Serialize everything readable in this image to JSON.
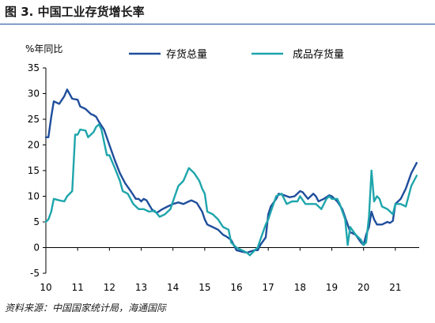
{
  "figure": {
    "title": "图 3. 中国工业存货增长率",
    "source": "资料来源：中国国家统计局，海通国际"
  },
  "chart_data": {
    "type": "line",
    "title": "",
    "ylabel": "%年同比",
    "xlabel": "",
    "xlim": [
      2010,
      2021.75
    ],
    "ylim": [
      -5,
      35
    ],
    "yticks": [
      -5,
      0,
      5,
      10,
      15,
      20,
      25,
      30,
      35
    ],
    "xticks": [
      {
        "value": 2010,
        "label": "10"
      },
      {
        "value": 2011,
        "label": "11"
      },
      {
        "value": 2012,
        "label": "12"
      },
      {
        "value": 2013,
        "label": "13"
      },
      {
        "value": 2014,
        "label": "14"
      },
      {
        "value": 2015,
        "label": "15"
      },
      {
        "value": 2016,
        "label": "16"
      },
      {
        "value": 2017,
        "label": "17"
      },
      {
        "value": 2018,
        "label": "18"
      },
      {
        "value": 2019,
        "label": "19"
      },
      {
        "value": 2020,
        "label": "20"
      },
      {
        "value": 2021,
        "label": "21"
      }
    ],
    "grid": false,
    "legend_position": "top",
    "series": [
      {
        "name": "存货总量",
        "color": "#1f4e9c",
        "points": [
          [
            2010.0,
            21.5
          ],
          [
            2010.08,
            21.5
          ],
          [
            2010.17,
            25.5
          ],
          [
            2010.25,
            28.5
          ],
          [
            2010.42,
            28.0
          ],
          [
            2010.58,
            29.5
          ],
          [
            2010.67,
            30.8
          ],
          [
            2010.83,
            29.0
          ],
          [
            2011.0,
            28.8
          ],
          [
            2011.08,
            27.5
          ],
          [
            2011.25,
            27.0
          ],
          [
            2011.42,
            26.0
          ],
          [
            2011.5,
            25.8
          ],
          [
            2011.58,
            25.5
          ],
          [
            2011.67,
            24.5
          ],
          [
            2011.83,
            23.0
          ],
          [
            2012.0,
            20.0
          ],
          [
            2012.17,
            17.0
          ],
          [
            2012.33,
            14.5
          ],
          [
            2012.5,
            12.5
          ],
          [
            2012.67,
            11.0
          ],
          [
            2012.83,
            9.5
          ],
          [
            2012.92,
            9.5
          ],
          [
            2013.0,
            9.0
          ],
          [
            2013.08,
            9.5
          ],
          [
            2013.17,
            9.2
          ],
          [
            2013.33,
            7.5
          ],
          [
            2013.42,
            7.0
          ],
          [
            2013.5,
            6.8
          ],
          [
            2013.67,
            7.5
          ],
          [
            2013.83,
            8.0
          ],
          [
            2014.0,
            8.5
          ],
          [
            2014.17,
            8.8
          ],
          [
            2014.33,
            8.5
          ],
          [
            2014.5,
            9.0
          ],
          [
            2014.58,
            9.2
          ],
          [
            2014.75,
            8.7
          ],
          [
            2014.92,
            7.0
          ],
          [
            2015.0,
            5.5
          ],
          [
            2015.08,
            4.5
          ],
          [
            2015.25,
            4.0
          ],
          [
            2015.42,
            3.5
          ],
          [
            2015.58,
            2.5
          ],
          [
            2015.67,
            2.2
          ],
          [
            2015.83,
            1.5
          ],
          [
            2016.0,
            -0.5
          ],
          [
            2016.17,
            -0.8
          ],
          [
            2016.33,
            -1.0
          ],
          [
            2016.42,
            -0.8
          ],
          [
            2016.58,
            -0.5
          ],
          [
            2016.67,
            -0.5
          ],
          [
            2016.75,
            0.5
          ],
          [
            2016.92,
            2.0
          ],
          [
            2017.0,
            6.5
          ],
          [
            2017.08,
            8.0
          ],
          [
            2017.25,
            9.5
          ],
          [
            2017.33,
            10.5
          ],
          [
            2017.5,
            10.2
          ],
          [
            2017.67,
            9.8
          ],
          [
            2017.83,
            10.0
          ],
          [
            2018.0,
            11.0
          ],
          [
            2018.08,
            10.8
          ],
          [
            2018.25,
            9.5
          ],
          [
            2018.42,
            10.5
          ],
          [
            2018.5,
            10.0
          ],
          [
            2018.58,
            9.0
          ],
          [
            2018.75,
            9.5
          ],
          [
            2018.92,
            10.2
          ],
          [
            2019.0,
            10.0
          ],
          [
            2019.17,
            9.0
          ],
          [
            2019.33,
            7.5
          ],
          [
            2019.5,
            4.5
          ],
          [
            2019.58,
            3.0
          ],
          [
            2019.75,
            2.5
          ],
          [
            2019.92,
            1.0
          ],
          [
            2020.0,
            0.5
          ],
          [
            2020.08,
            2.5
          ],
          [
            2020.17,
            4.0
          ],
          [
            2020.25,
            7.0
          ],
          [
            2020.33,
            5.5
          ],
          [
            2020.42,
            4.5
          ],
          [
            2020.58,
            4.5
          ],
          [
            2020.75,
            5.0
          ],
          [
            2020.83,
            4.8
          ],
          [
            2020.92,
            5.2
          ],
          [
            2021.0,
            8.5
          ],
          [
            2021.17,
            9.5
          ],
          [
            2021.33,
            11.5
          ],
          [
            2021.5,
            14.5
          ],
          [
            2021.67,
            16.5
          ]
        ]
      },
      {
        "name": "成品存货量",
        "color": "#1ea5ac",
        "points": [
          [
            2010.0,
            5.0
          ],
          [
            2010.08,
            5.5
          ],
          [
            2010.17,
            7.0
          ],
          [
            2010.25,
            9.5
          ],
          [
            2010.42,
            9.2
          ],
          [
            2010.58,
            9.0
          ],
          [
            2010.67,
            10.0
          ],
          [
            2010.83,
            11.0
          ],
          [
            2010.92,
            22.0
          ],
          [
            2011.0,
            22.0
          ],
          [
            2011.08,
            23.0
          ],
          [
            2011.25,
            22.8
          ],
          [
            2011.33,
            21.5
          ],
          [
            2011.5,
            22.5
          ],
          [
            2011.58,
            23.5
          ],
          [
            2011.67,
            24.0
          ],
          [
            2011.75,
            23.0
          ],
          [
            2011.92,
            18.0
          ],
          [
            2012.0,
            18.0
          ],
          [
            2012.17,
            15.5
          ],
          [
            2012.33,
            13.0
          ],
          [
            2012.42,
            11.0
          ],
          [
            2012.58,
            10.5
          ],
          [
            2012.75,
            8.5
          ],
          [
            2012.92,
            7.5
          ],
          [
            2013.08,
            7.5
          ],
          [
            2013.25,
            7.0
          ],
          [
            2013.42,
            7.2
          ],
          [
            2013.58,
            6.0
          ],
          [
            2013.75,
            6.5
          ],
          [
            2013.92,
            7.5
          ],
          [
            2014.0,
            9.0
          ],
          [
            2014.17,
            12.0
          ],
          [
            2014.33,
            13.0
          ],
          [
            2014.5,
            15.5
          ],
          [
            2014.67,
            14.5
          ],
          [
            2014.83,
            13.0
          ],
          [
            2014.92,
            11.5
          ],
          [
            2015.0,
            10.5
          ],
          [
            2015.08,
            7.0
          ],
          [
            2015.25,
            6.5
          ],
          [
            2015.42,
            5.5
          ],
          [
            2015.58,
            4.0
          ],
          [
            2015.75,
            3.5
          ],
          [
            2015.83,
            1.0
          ],
          [
            2016.0,
            0.0
          ],
          [
            2016.17,
            -0.5
          ],
          [
            2016.33,
            -1.0
          ],
          [
            2016.42,
            -1.5
          ],
          [
            2016.58,
            -0.5
          ],
          [
            2016.67,
            0.0
          ],
          [
            2016.75,
            1.5
          ],
          [
            2016.92,
            4.5
          ],
          [
            2017.0,
            5.5
          ],
          [
            2017.08,
            7.0
          ],
          [
            2017.25,
            10.0
          ],
          [
            2017.42,
            10.5
          ],
          [
            2017.58,
            8.5
          ],
          [
            2017.75,
            9.0
          ],
          [
            2017.92,
            9.0
          ],
          [
            2018.0,
            10.0
          ],
          [
            2018.17,
            8.5
          ],
          [
            2018.33,
            8.5
          ],
          [
            2018.5,
            8.5
          ],
          [
            2018.67,
            7.5
          ],
          [
            2018.83,
            9.5
          ],
          [
            2018.92,
            10.0
          ],
          [
            2019.0,
            9.5
          ],
          [
            2019.17,
            9.5
          ],
          [
            2019.25,
            8.5
          ],
          [
            2019.42,
            5.5
          ],
          [
            2019.5,
            0.5
          ],
          [
            2019.58,
            4.0
          ],
          [
            2019.75,
            2.5
          ],
          [
            2019.92,
            1.5
          ],
          [
            2020.0,
            0.5
          ],
          [
            2020.08,
            1.0
          ],
          [
            2020.17,
            6.0
          ],
          [
            2020.25,
            15.0
          ],
          [
            2020.33,
            9.0
          ],
          [
            2020.42,
            10.0
          ],
          [
            2020.5,
            9.5
          ],
          [
            2020.58,
            8.0
          ],
          [
            2020.75,
            7.5
          ],
          [
            2020.92,
            6.5
          ],
          [
            2021.0,
            8.5
          ],
          [
            2021.17,
            8.5
          ],
          [
            2021.33,
            8.0
          ],
          [
            2021.5,
            12.0
          ],
          [
            2021.67,
            14.0
          ]
        ]
      }
    ]
  }
}
